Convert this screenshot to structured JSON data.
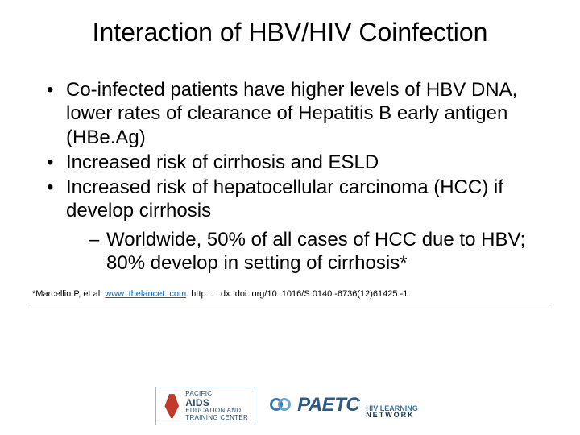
{
  "slide": {
    "title": "Interaction of HBV/HIV Coinfection",
    "bullets": [
      {
        "text": "Co-infected patients have higher levels of HBV DNA, lower rates of clearance of Hepatitis B early antigen (HBe.Ag)"
      },
      {
        "text": "Increased risk of cirrhosis and ESLD"
      },
      {
        "text": "Increased risk of hepatocellular carcinoma (HCC) if develop cirrhosis",
        "sub": [
          {
            "text": "Worldwide, 50% of all cases of HCC due to HBV; 80% develop in setting of cirrhosis*"
          }
        ]
      }
    ],
    "citation": {
      "prefix": "*Marcellin P, et al. ",
      "link_text": "www. thelancet. com",
      "link_href": "http://www.thelancet.com",
      "suffix": ". http: . . dx. doi. org/10. 1016/S 0140 -6736(12)61425 -1"
    }
  },
  "footer": {
    "logo_a": {
      "line1": "PACIFIC",
      "line2": "AIDS",
      "line3": "Education and",
      "line4": "Training Center"
    },
    "logo_b": {
      "brand": "PAETC",
      "tag1": "HIV LEARNING",
      "tag2": "NETWORK"
    }
  },
  "style": {
    "background_color": "#ffffff",
    "text_color": "#000000",
    "title_fontsize": 32,
    "body_fontsize": 24,
    "citation_fontsize": 11,
    "link_color": "#0563c1",
    "divider_color": "#7f7f7f",
    "logo_a_border": "#9db6c9",
    "logo_a_text_color": "#2a4a63",
    "ribbon_color": "#c0392b",
    "ring_colors": [
      "#3a7ab5",
      "#6aa7d6"
    ],
    "paetc_color": "#2a5a85",
    "hiv_tag_color1": "#3f6f94",
    "hiv_tag_color2": "#1a3a55"
  }
}
